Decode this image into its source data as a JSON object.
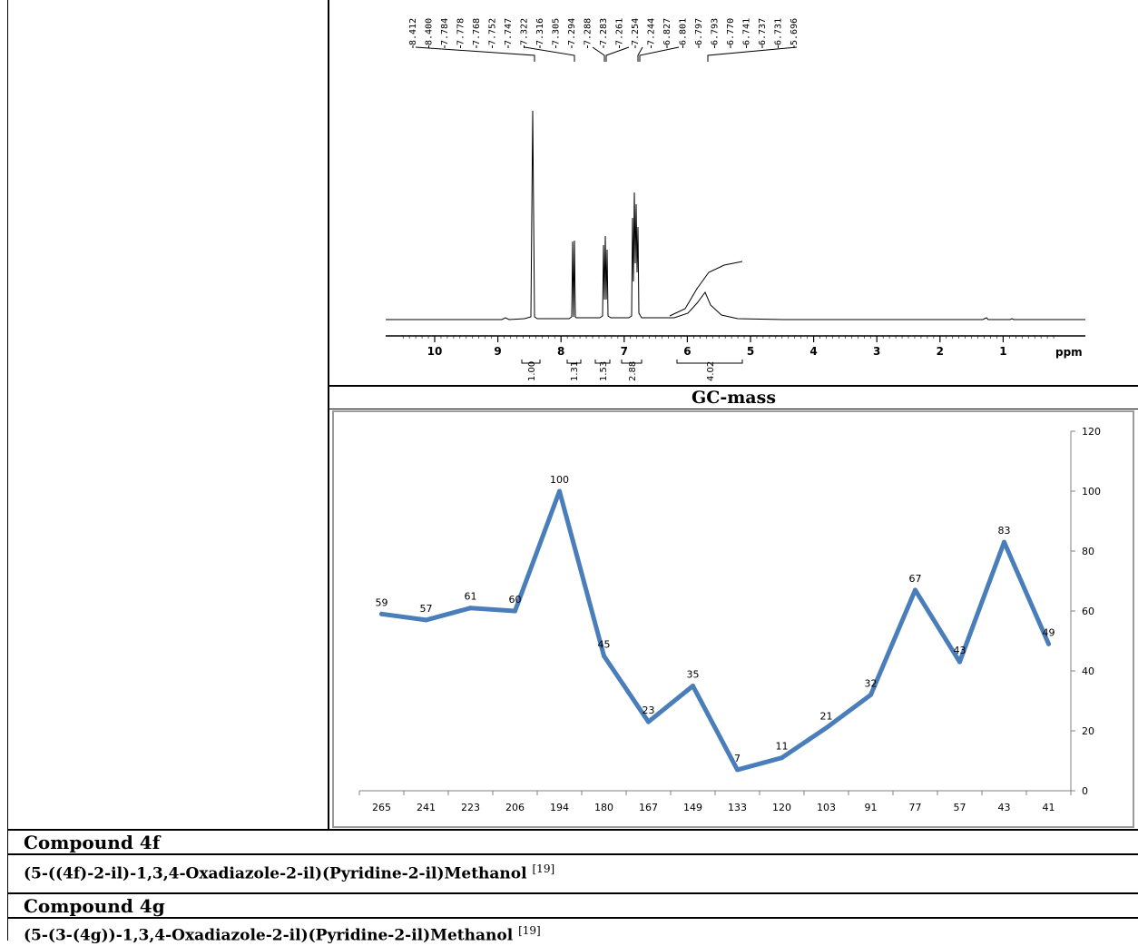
{
  "nmr": {
    "peak_labels": [
      "8.412",
      "8.400",
      "7.784",
      "7.778",
      "7.768",
      "7.752",
      "7.747",
      "7.322",
      "7.316",
      "7.305",
      "7.294",
      "7.288",
      "7.283",
      "7.261",
      "7.254",
      "7.244",
      "6.827",
      "6.801",
      "6.797",
      "6.793",
      "6.770",
      "6.741",
      "6.737",
      "6.731",
      "5.696"
    ],
    "axis_ticks": [
      "10",
      "9",
      "8",
      "7",
      "6",
      "5",
      "4",
      "3",
      "2",
      "1"
    ],
    "axis_unit": "ppm",
    "integrals": [
      "1.00",
      "1.31",
      "1.53",
      "2.88",
      "4.02"
    ]
  },
  "gc_title": "GC-mass",
  "chart_data": {
    "type": "line",
    "title": "",
    "xlabel": "",
    "ylabel": "",
    "categories": [
      "265",
      "241",
      "223",
      "206",
      "194",
      "180",
      "167",
      "149",
      "133",
      "120",
      "103",
      "91",
      "77",
      "57",
      "43",
      "41"
    ],
    "values": [
      59,
      57,
      61,
      60,
      100,
      45,
      23,
      35,
      7,
      11,
      21,
      32,
      67,
      43,
      83,
      49
    ],
    "ylim": [
      0,
      120
    ],
    "yticks": [
      "0",
      "20",
      "40",
      "60",
      "80",
      "100",
      "120"
    ],
    "y_axis_side": "right",
    "grid": false,
    "line_color": "#4a7ebb"
  },
  "rows": {
    "compound_4f_heading": "Compound 4f",
    "compound_4f_name": "(5-((4f)-2-il)-1,3,4-Oxadiazole-2-il)(Pyridine-2-il)Methanol",
    "compound_4f_ref": "[19]",
    "compound_4g_heading": "Compound 4g",
    "compound_4g_name": "(5-(3-(4g))-1,3,4-Oxadiazole-2-il)(Pyridine-2-il)Methanol",
    "compound_4g_ref": "[19]"
  }
}
